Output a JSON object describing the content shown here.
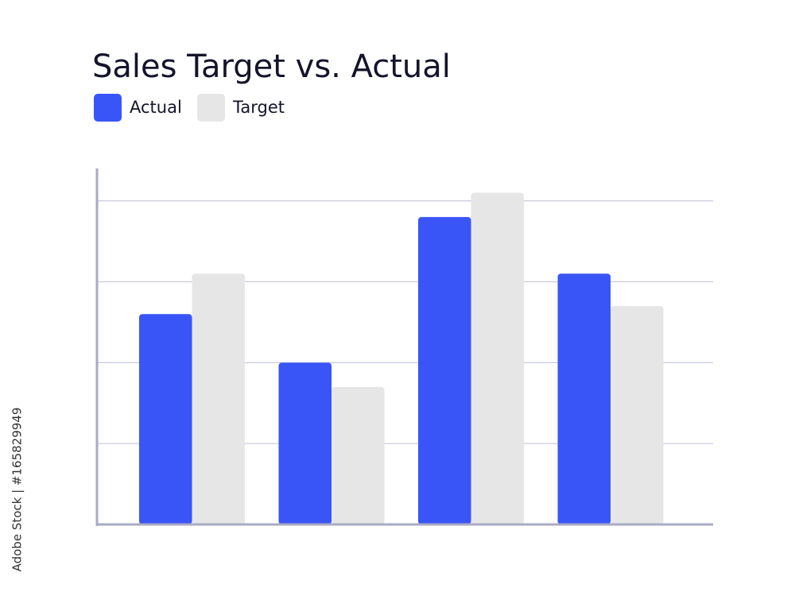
{
  "chart_data": {
    "type": "bar",
    "title": "Sales Target vs. Actual",
    "categories": [
      null,
      null,
      null,
      null
    ],
    "series": [
      {
        "name": "Actual",
        "color": "#3a55f7",
        "values": [
          2.6,
          2.0,
          3.8,
          3.1
        ]
      },
      {
        "name": "Target",
        "color": "#e6e6e6",
        "values": [
          3.1,
          1.7,
          4.1,
          2.7
        ]
      }
    ],
    "ylim": [
      0,
      4.4
    ],
    "yticks": [
      1,
      2,
      3,
      4
    ],
    "grid": true,
    "watermark": "Adobe Stock | #165829949"
  }
}
